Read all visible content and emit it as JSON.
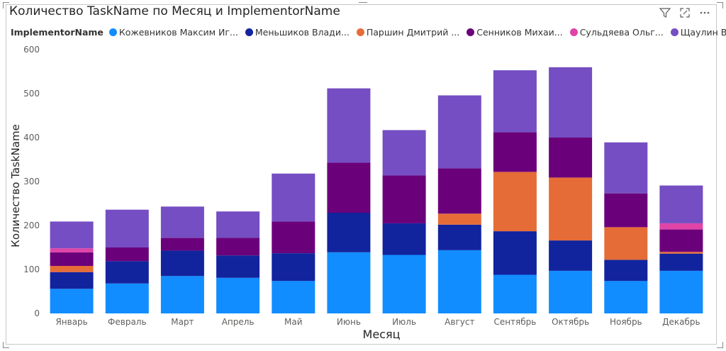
{
  "toolbar": {
    "filter_icon": "filter-icon",
    "focus_icon": "focus-mode-icon",
    "more_icon": "more-options-icon"
  },
  "chart_data": {
    "type": "bar",
    "stacked": true,
    "title": "Количество TaskName по Месяц и ImplementorName",
    "xlabel": "Месяц",
    "ylabel": "Количество TaskName",
    "ylim": [
      0,
      600
    ],
    "yticks": [
      0,
      100,
      200,
      300,
      400,
      500,
      600
    ],
    "legend_title": "ImplementorName",
    "legend_position": "top",
    "grid": false,
    "categories": [
      "Январь",
      "Февраль",
      "Март",
      "Апрель",
      "Май",
      "Июнь",
      "Июль",
      "Август",
      "Сентябрь",
      "Октябрь",
      "Ноябрь",
      "Декабрь"
    ],
    "series": [
      {
        "name": "Кожевников Максим Иг...",
        "color": "#118DFF",
        "values": [
          56,
          68,
          85,
          81,
          74,
          139,
          133,
          144,
          88,
          97,
          74,
          97
        ]
      },
      {
        "name": "Меньшиков Влади...",
        "color": "#12239E",
        "values": [
          38,
          51,
          58,
          51,
          63,
          90,
          72,
          58,
          99,
          69,
          48,
          39
        ]
      },
      {
        "name": "Паршин Дмитрий ...",
        "color": "#E66C37",
        "values": [
          14,
          0,
          0,
          0,
          0,
          0,
          0,
          25,
          135,
          143,
          74,
          4
        ]
      },
      {
        "name": "Сенников Михаи...",
        "color": "#6B007B",
        "values": [
          31,
          31,
          29,
          40,
          72,
          114,
          109,
          103,
          90,
          91,
          77,
          51
        ]
      },
      {
        "name": "Сульдяева Ольг...",
        "color": "#E044A7",
        "values": [
          9,
          0,
          0,
          0,
          0,
          0,
          0,
          0,
          0,
          0,
          0,
          14
        ]
      },
      {
        "name": "Щаулин Вяче...",
        "color": "#744EC2",
        "values": [
          61,
          86,
          71,
          60,
          109,
          169,
          103,
          166,
          141,
          160,
          116,
          86
        ]
      }
    ]
  }
}
